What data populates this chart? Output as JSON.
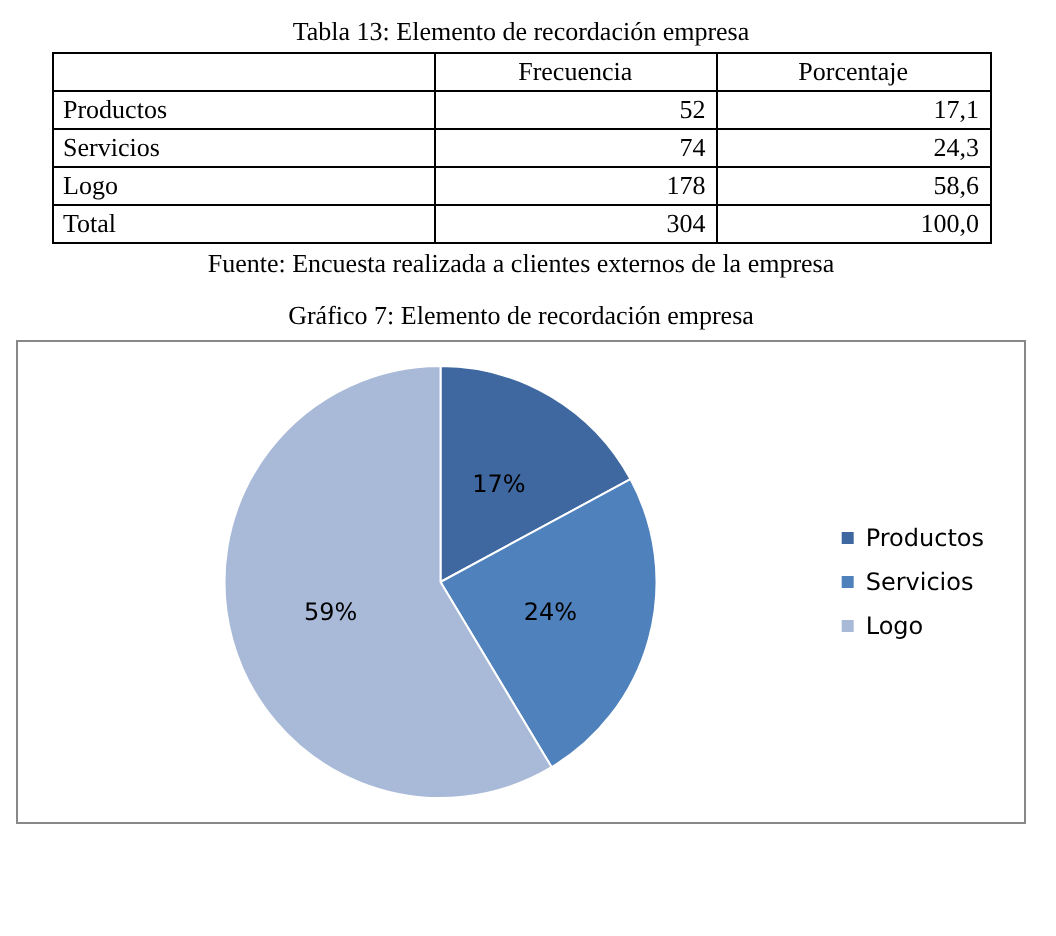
{
  "chart_data": [
    {
      "type": "other",
      "title": "Tabla 13: Elemento de recordación empresa",
      "categories": [
        "Productos",
        "Servicios",
        "Logo",
        "Total"
      ],
      "series": [
        {
          "name": "Frecuencia",
          "values": [
            52,
            74,
            178,
            304
          ]
        },
        {
          "name": "Porcentaje",
          "values": [
            17.1,
            24.3,
            58.6,
            100.0
          ],
          "value_labels": [
            "17,1",
            "24,3",
            "58,6",
            "100,0"
          ]
        }
      ],
      "data_labels": true,
      "annotations": [
        "Fuente: Encuesta realizada a clientes externos de la empresa"
      ]
    },
    {
      "type": "pie",
      "title": "Gráfico 7: Elemento de recordación empresa",
      "categories": [
        "Productos",
        "Servicios",
        "Logo"
      ],
      "values": [
        17.1,
        24.3,
        58.6
      ],
      "value_labels": [
        "17%",
        "24%",
        "59%"
      ],
      "colors": [
        "#3f67a0",
        "#4f81bd",
        "#a9bad9"
      ],
      "legend": "right"
    }
  ]
}
